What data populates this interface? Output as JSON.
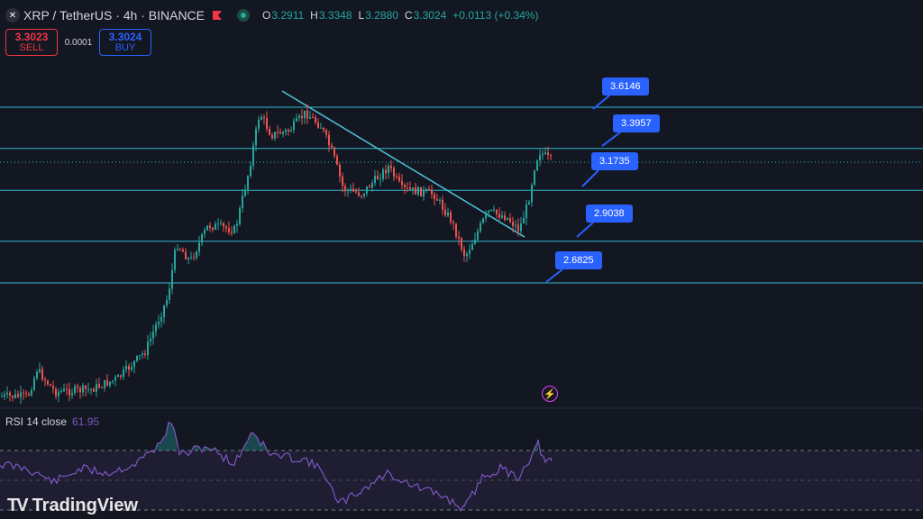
{
  "header": {
    "logo_icon": "xrp-logo-icon",
    "symbol": "XRP / TetherUS · 4h · BINANCE",
    "ohlc": {
      "o_label": "O",
      "o": "3.2911",
      "h_label": "H",
      "h": "3.3348",
      "l_label": "L",
      "l": "3.2880",
      "c_label": "C",
      "c": "3.3024",
      "change": "+0.0113 (+0.34%)"
    }
  },
  "trade": {
    "sell_price": "3.3023",
    "sell_label": "SELL",
    "spread": "0.0001",
    "buy_price": "3.3024",
    "buy_label": "BUY"
  },
  "annotations": {
    "tag1": "3.6146",
    "tag2": "3.3957",
    "tag3": "3.1735",
    "tag4": "2.9038",
    "tag5": "2.6825"
  },
  "rsi": {
    "label": "RSI 14 close",
    "value": "61.95"
  },
  "brand": {
    "name": "TradingView"
  },
  "colors": {
    "up": "#26a69a",
    "down": "#ef5350",
    "level": "#2fb8d0",
    "trend": "#4fc3d9",
    "rsi": "#7e57c2",
    "tag": "#2962ff"
  },
  "chart_data": {
    "type": "candlestick",
    "horizontal_levels": [
      3.6146,
      3.3957,
      3.1735,
      2.9038,
      2.6825
    ],
    "current_price": 3.3024,
    "rsi_value": 61.95
  }
}
